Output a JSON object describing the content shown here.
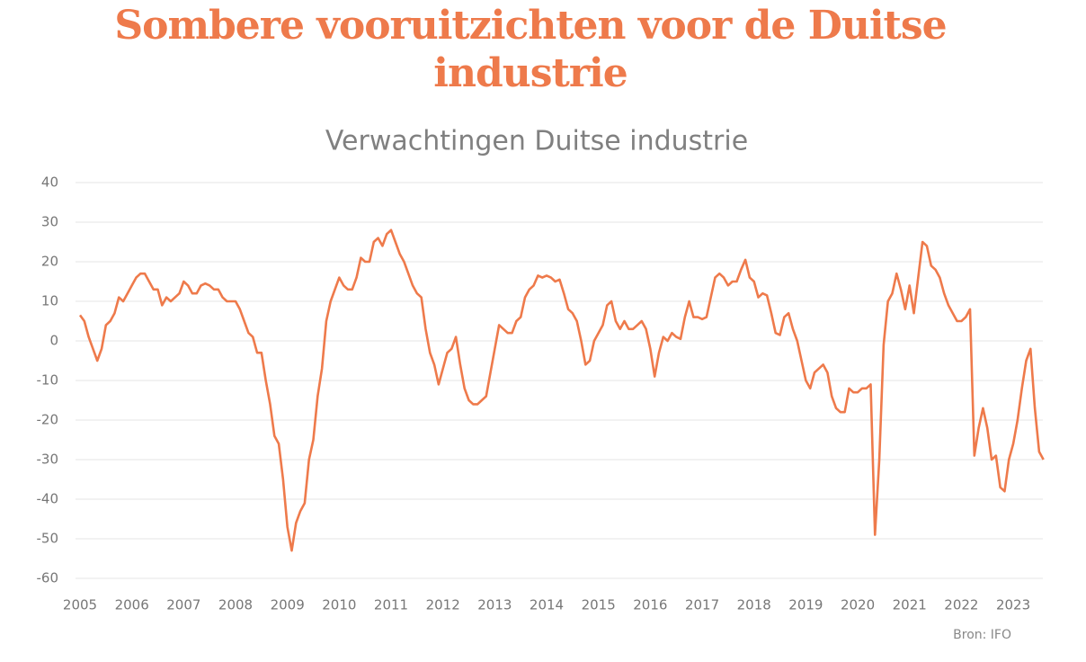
{
  "chart_data": {
    "type": "line",
    "title": "Sombere vooruitzichten voor de Duitse industrie",
    "subtitle": "Verwachtingen Duitse industrie",
    "source": "Bron: IFO",
    "color": "#ee7a4b",
    "grid": true,
    "ylim": [
      -60,
      40
    ],
    "yticks": [
      -60,
      -50,
      -40,
      -30,
      -20,
      -10,
      0,
      10,
      20,
      30,
      40
    ],
    "categories": [
      "2005",
      null,
      null,
      null,
      null,
      null,
      null,
      null,
      null,
      null,
      null,
      null,
      "2006",
      null,
      null,
      null,
      null,
      null,
      null,
      null,
      null,
      null,
      null,
      null,
      "2007",
      null,
      null,
      null,
      null,
      null,
      null,
      null,
      null,
      null,
      null,
      null,
      "2008",
      null,
      null,
      null,
      null,
      null,
      null,
      null,
      null,
      null,
      null,
      null,
      "2009",
      null,
      null,
      null,
      null,
      null,
      null,
      null,
      null,
      null,
      null,
      null,
      "2010",
      null,
      null,
      null,
      null,
      null,
      null,
      null,
      null,
      null,
      null,
      null,
      "2011",
      null,
      null,
      null,
      null,
      null,
      null,
      null,
      null,
      null,
      null,
      null,
      "2012",
      null,
      null,
      null,
      null,
      null,
      null,
      null,
      null,
      null,
      null,
      null,
      "2013",
      null,
      null,
      null,
      null,
      null,
      null,
      null,
      null,
      null,
      null,
      null,
      "2014",
      null,
      null,
      null,
      null,
      null,
      null,
      null,
      null,
      null,
      null,
      null,
      "2015",
      null,
      null,
      null,
      null,
      null,
      null,
      null,
      null,
      null,
      null,
      null,
      "2016",
      null,
      null,
      null,
      null,
      null,
      null,
      null,
      null,
      null,
      null,
      null,
      "2017",
      null,
      null,
      null,
      null,
      null,
      null,
      null,
      null,
      null,
      null,
      null,
      "2018",
      null,
      null,
      null,
      null,
      null,
      null,
      null,
      null,
      null,
      null,
      null,
      "2019",
      null,
      null,
      null,
      null,
      null,
      null,
      null,
      null,
      null,
      null,
      null,
      "2020",
      null,
      null,
      null,
      null,
      null,
      null,
      null,
      null,
      null,
      null,
      null,
      "2021",
      null,
      null,
      null,
      null,
      null,
      null,
      null,
      null,
      null,
      null,
      null,
      "2022",
      null,
      null,
      null,
      null,
      null,
      null,
      null,
      null,
      null,
      null,
      null,
      "2023",
      null,
      null,
      null,
      null,
      null,
      null,
      null
    ],
    "values": [
      6.5,
      5,
      1,
      -2,
      -5,
      -2,
      4,
      5,
      7,
      11,
      10,
      12,
      14,
      16,
      17,
      17,
      15,
      13,
      13,
      9,
      11,
      10,
      11,
      12,
      15,
      14,
      12,
      12,
      14,
      14.5,
      14,
      13,
      13,
      11,
      10,
      10,
      10,
      8,
      5,
      2,
      1,
      -3,
      -3,
      -10,
      -16,
      -24,
      -26,
      -35,
      -47,
      -53,
      -46,
      -43,
      -41,
      -30,
      -25,
      -14,
      -7,
      5,
      10,
      13,
      16,
      14,
      13,
      13,
      16,
      21,
      20,
      20,
      25,
      26,
      24,
      27,
      28,
      25,
      22,
      20,
      17,
      14,
      12,
      11,
      3,
      -3,
      -6,
      -11,
      -7,
      -3,
      -2,
      1,
      -6,
      -12,
      -15,
      -16,
      -16,
      -15,
      -14,
      -8,
      -2,
      4,
      3,
      2,
      2,
      5,
      6,
      11,
      13,
      14,
      16.5,
      16,
      16.5,
      16,
      15,
      15.5,
      12,
      8,
      7,
      5,
      0,
      -6,
      -5,
      0,
      2,
      4,
      9,
      10,
      5,
      3,
      5,
      3,
      3,
      4,
      5,
      3,
      -2,
      -9,
      -3,
      1,
      0,
      2,
      1,
      0.5,
      6,
      10,
      6,
      6,
      5.5,
      6,
      11,
      16,
      17,
      16,
      14,
      15,
      15,
      18,
      20.5,
      16,
      15,
      11,
      12,
      11.5,
      7,
      2,
      1.5,
      6,
      7,
      3,
      0,
      -5,
      -10,
      -12,
      -8,
      -7,
      -6,
      -8,
      -14,
      -17,
      -18,
      -18,
      -12,
      -13,
      -13,
      -12,
      -12,
      -11,
      -49,
      -30,
      -1,
      10,
      12,
      17,
      13,
      8,
      14,
      7,
      16,
      25,
      24,
      19,
      18,
      16,
      12,
      9,
      7,
      5,
      5,
      6,
      8,
      -29,
      -22,
      -17,
      -22,
      -30,
      -29,
      -37,
      -38,
      -30,
      -26,
      -20,
      -12,
      -5,
      -2,
      -17,
      -28,
      -30
    ]
  }
}
